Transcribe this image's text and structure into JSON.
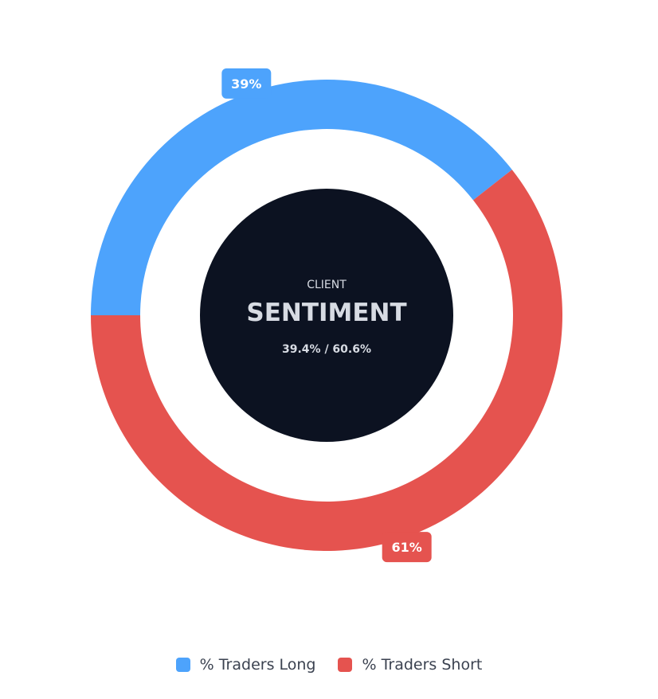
{
  "chart_data": {
    "type": "pie",
    "categories": [
      "% Traders Long",
      "% Traders Short"
    ],
    "values": [
      39.4,
      60.6
    ],
    "data_labels": [
      "39%",
      "61%"
    ],
    "colors": [
      "#4da3fc",
      "#e5534f"
    ],
    "legend": "bottom-center",
    "center": {
      "line1": "CLIENT",
      "line2": "SENTIMENT",
      "line3": "39.4% / 60.6%",
      "background": "#0c1221"
    }
  },
  "legend": {
    "items": [
      {
        "label": "% Traders Long",
        "color": "#4da3fc"
      },
      {
        "label": "% Traders Short",
        "color": "#e5534f"
      }
    ]
  }
}
